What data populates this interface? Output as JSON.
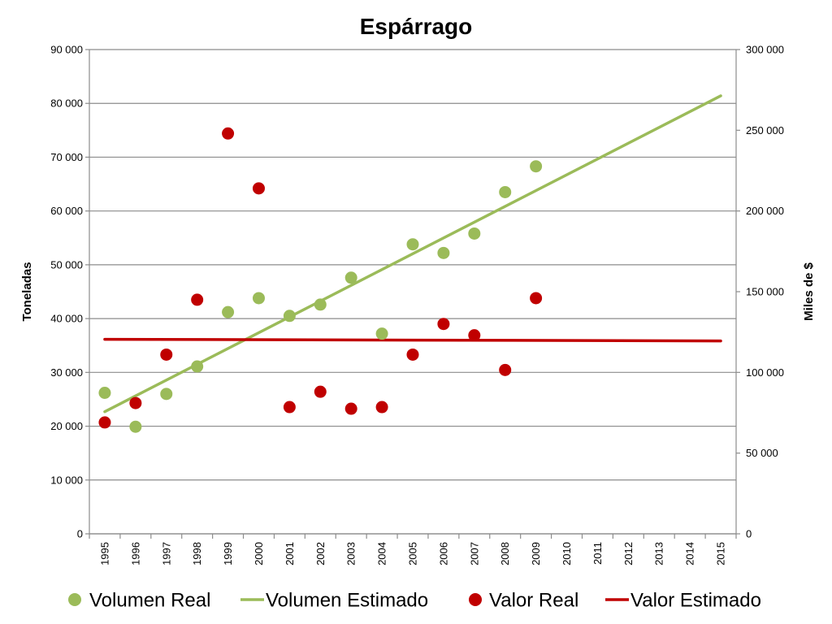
{
  "chart_data": {
    "type": "scatter",
    "title": "Espárrago",
    "ylabel": "Toneladas",
    "y2label": "Miles de $",
    "x": [
      1995,
      1996,
      1997,
      1998,
      1999,
      2000,
      2001,
      2002,
      2003,
      2004,
      2005,
      2006,
      2007,
      2008,
      2009,
      2010,
      2011,
      2012,
      2013,
      2014,
      2015
    ],
    "ylim": [
      0,
      90000
    ],
    "y2lim": [
      0,
      300000
    ],
    "yticks": [
      "0",
      "10 000",
      "20 000",
      "30 000",
      "40 000",
      "50 000",
      "60 000",
      "70 000",
      "80 000",
      "90 000"
    ],
    "y2ticks": [
      "0",
      "50 000",
      "100 000",
      "150 000",
      "200 000",
      "250 000",
      "300 000"
    ],
    "grid": true,
    "legend_position": "bottom",
    "series": [
      {
        "name": "Volumen Real",
        "kind": "points",
        "axis": "left",
        "color": "#9BBB59",
        "x": [
          1995,
          1996,
          1997,
          1998,
          1999,
          2000,
          2001,
          2002,
          2003,
          2004,
          2005,
          2006,
          2007,
          2008,
          2009
        ],
        "values": [
          26200,
          19900,
          26000,
          31100,
          41200,
          43800,
          40500,
          42600,
          47600,
          37200,
          53800,
          52200,
          55800,
          63500,
          68300
        ]
      },
      {
        "name": "Volumen Estimado",
        "kind": "line",
        "axis": "left",
        "color": "#9BBB59",
        "x": [
          1995,
          2015
        ],
        "values": [
          22700,
          81400
        ]
      },
      {
        "name": "Valor Real",
        "kind": "points",
        "axis": "right",
        "color": "#C00000",
        "x": [
          1995,
          1996,
          1997,
          1998,
          1999,
          2000,
          2001,
          2002,
          2003,
          2004,
          2005,
          2006,
          2007,
          2008,
          2009
        ],
        "values": [
          69000,
          81000,
          111000,
          145000,
          248000,
          214000,
          78500,
          88000,
          77500,
          78500,
          111000,
          130000,
          123000,
          101500,
          146000
        ]
      },
      {
        "name": "Valor Estimado",
        "kind": "line",
        "axis": "right",
        "color": "#C00000",
        "x": [
          1995,
          2015
        ],
        "values": [
          120500,
          119500
        ]
      }
    ]
  }
}
